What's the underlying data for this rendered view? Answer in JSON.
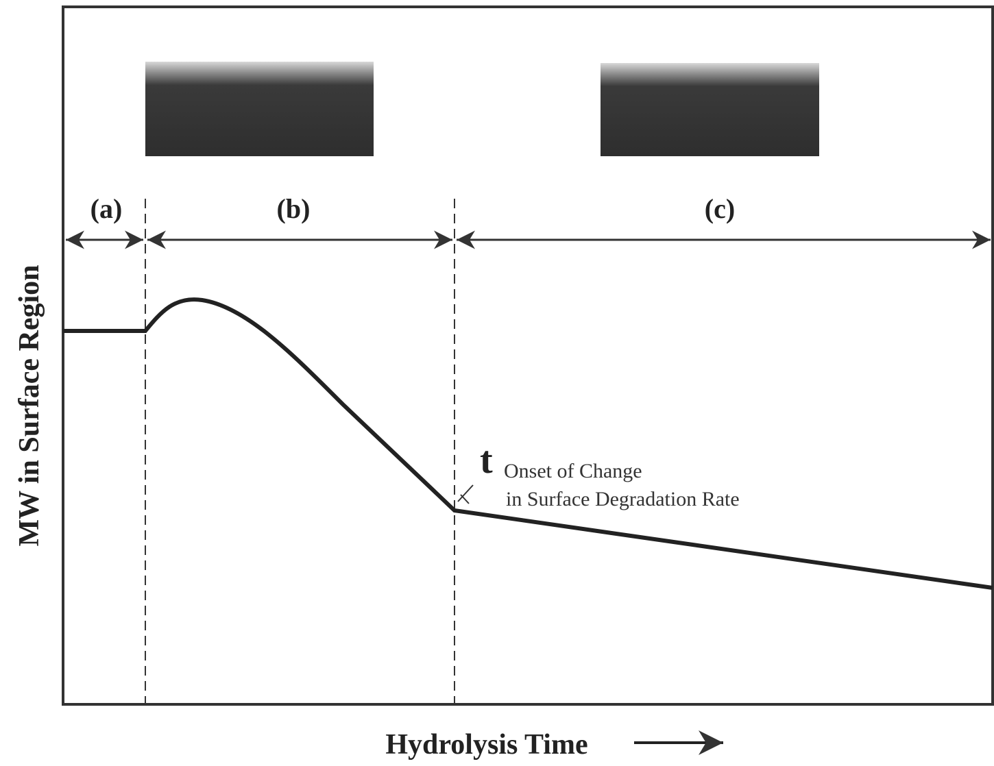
{
  "phases": [
    "(a)",
    "(b)",
    "(c)"
  ],
  "y_axis_label": "MW in Surface Region",
  "x_axis_label": "Hydrolysis Time",
  "annotation": {
    "symbol": "t",
    "lines": [
      "Onset of Change",
      "in Surface Degradation Rate"
    ]
  }
}
